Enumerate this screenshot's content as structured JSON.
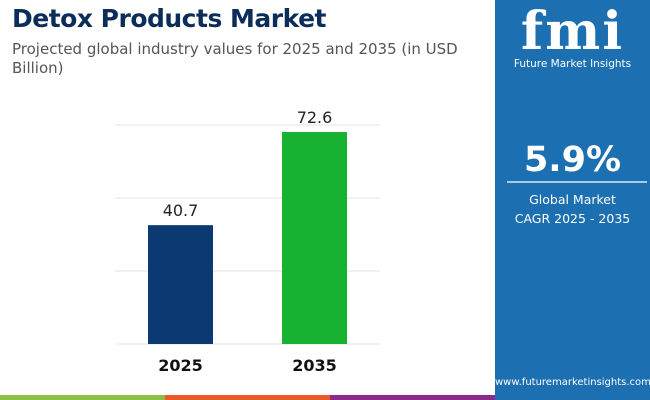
{
  "header": {
    "title": "Detox Products Market",
    "subtitle": "Projected global industry values for 2025 and 2035 (in USD Billion)"
  },
  "chart_data": {
    "type": "bar",
    "categories": [
      "2025",
      "2035"
    ],
    "values": [
      40.7,
      72.6
    ],
    "data_labels": [
      "40.7",
      "72.6"
    ],
    "colors": [
      "#0b3a73",
      "#18b232"
    ],
    "ylim": [
      0,
      75
    ],
    "grid": true,
    "xlabel": "",
    "ylabel": ""
  },
  "panel": {
    "brand": "fmi",
    "brand_name": "Future Market Insights",
    "cagr": "5.9%",
    "cagr_label_1": "Global Market",
    "cagr_label_2": "CAGR 2025 - 2035",
    "url": "www.futuremarketinsights.com",
    "bg": "#1c6fb0"
  },
  "strip_colors": [
    "#8bc040",
    "#ea5a28",
    "#8b2a8a"
  ]
}
